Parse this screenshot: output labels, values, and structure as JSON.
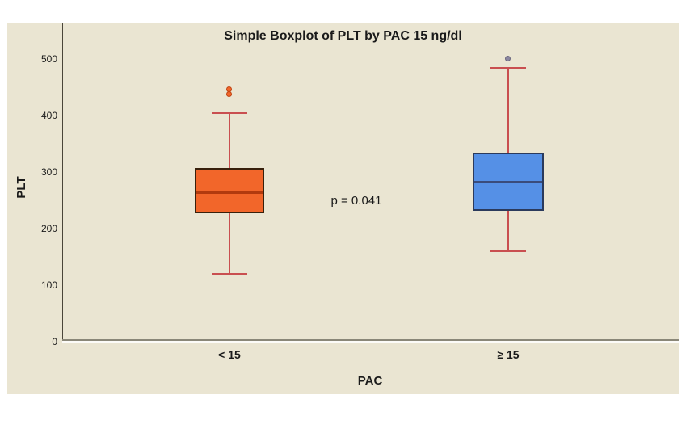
{
  "chart_data": {
    "type": "boxplot",
    "title": "Simple Boxplot of PLT by PAC 15 ng/dl",
    "xlabel": "PAC",
    "ylabel": "PLT",
    "annotation": "p = 0.041",
    "ylim": [
      0,
      560
    ],
    "yticks": [
      0,
      100,
      200,
      300,
      400,
      500
    ],
    "grid": false,
    "legend_position": "none",
    "colors": {
      "plot_background": "#EAE5D2",
      "page_background": "#FFFFFF",
      "whisker": "#C94F50",
      "y_axis_line": "#4A463A",
      "x_axis_line": "#8A8778",
      "text": "#1A1A1A"
    },
    "groups": [
      {
        "label": "< 15",
        "whisker_low": 120,
        "q1": 227,
        "median": 265,
        "q3": 307,
        "whisker_high": 405,
        "outliers": [
          437,
          446
        ],
        "box_fill": "#F2662A",
        "box_border": "#38200C",
        "median_color": "#B23A0E",
        "outlier_fill": "#F2662A",
        "outlier_border": "#C04514"
      },
      {
        "label": "≥ 15",
        "whisker_low": 160,
        "q1": 232,
        "median": 283,
        "q3": 335,
        "whisker_high": 485,
        "outliers": [
          500
        ],
        "box_fill": "#5590E6",
        "box_border": "#2B3A5C",
        "median_color": "#3A4C7C",
        "outlier_fill": "#8B87A0",
        "outlier_border": "#6B677F"
      }
    ]
  }
}
